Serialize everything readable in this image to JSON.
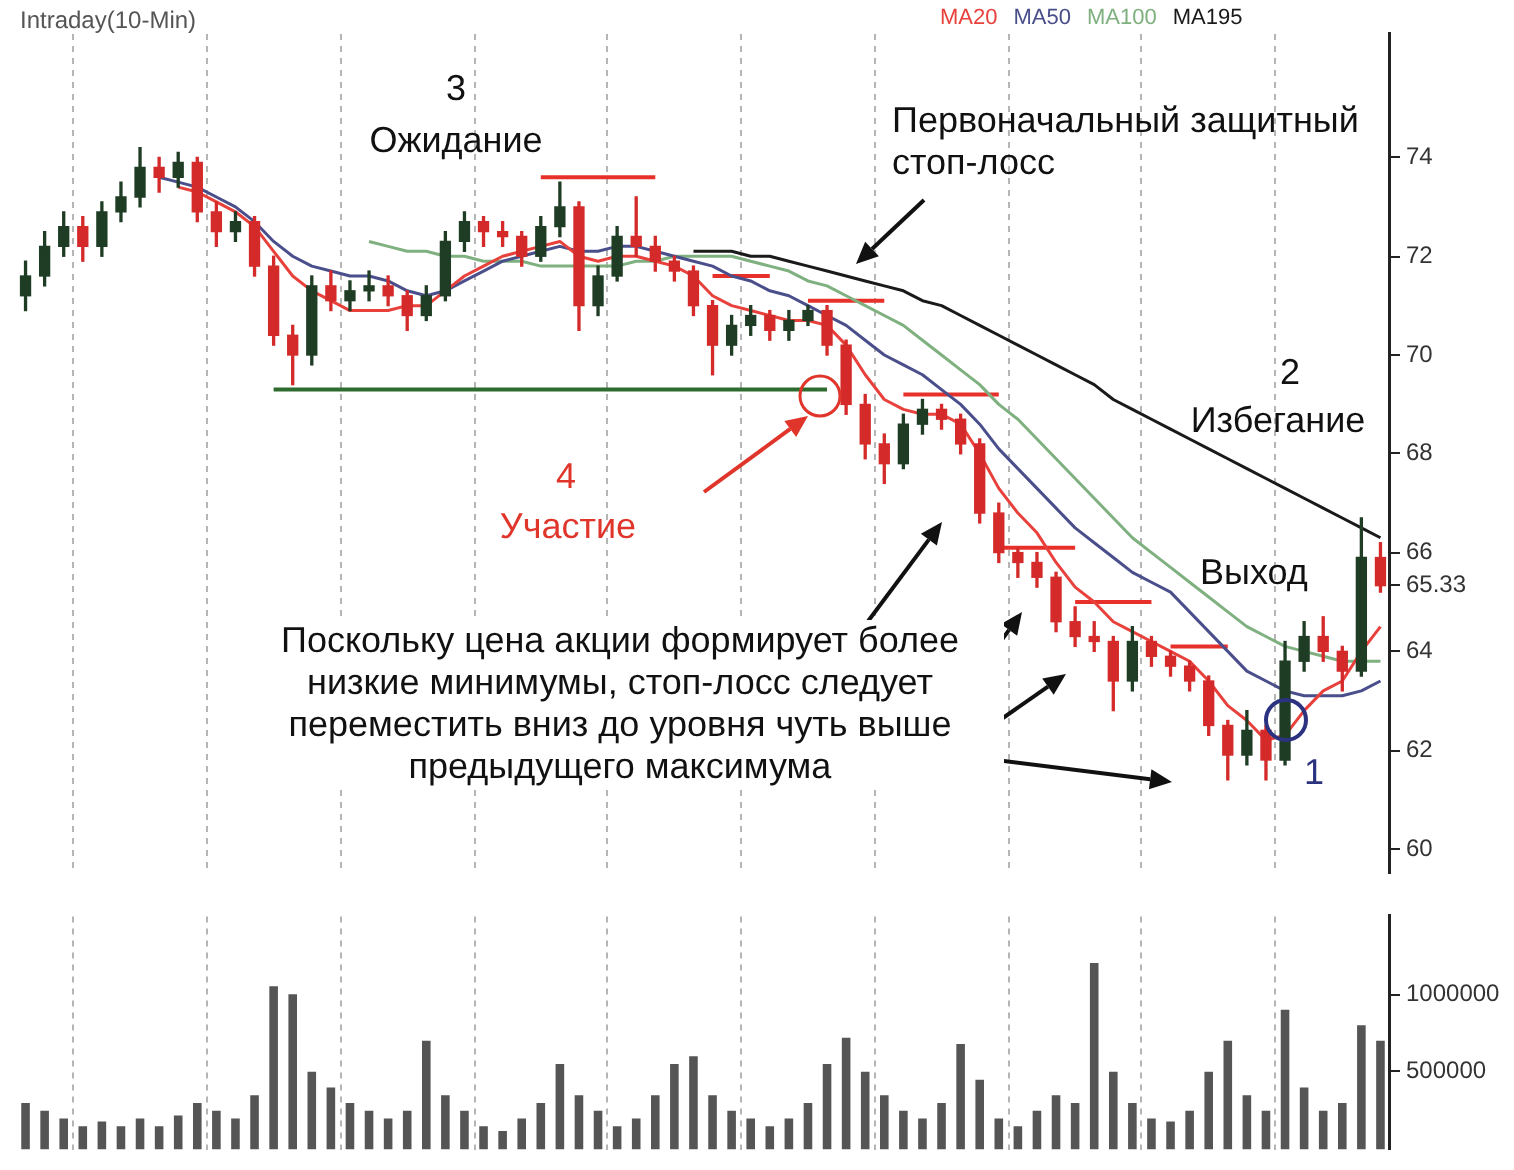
{
  "chart_data": [
    {
      "type": "candlestick",
      "title": "Intraday(10-Min)",
      "categories": [
        null,
        null,
        null,
        null,
        null,
        null,
        null,
        null,
        null,
        null,
        null,
        null,
        null,
        null,
        null,
        null,
        null,
        null,
        null,
        null,
        null,
        null,
        null,
        null,
        null,
        null,
        null,
        null,
        null,
        null,
        null,
        null,
        null,
        null,
        null,
        null,
        null,
        null,
        null,
        null,
        null,
        null,
        null,
        null,
        null,
        null,
        null,
        null,
        null,
        null,
        null,
        null,
        null,
        null,
        null,
        null,
        null,
        null,
        null,
        null,
        null,
        null,
        null,
        null,
        null,
        null,
        null,
        null,
        null,
        null,
        null,
        null
      ],
      "ohlc": [
        [
          71.2,
          71.9,
          70.9,
          71.6
        ],
        [
          71.6,
          72.5,
          71.4,
          72.2
        ],
        [
          72.2,
          72.9,
          72.0,
          72.6
        ],
        [
          72.6,
          72.8,
          71.9,
          72.2
        ],
        [
          72.2,
          73.1,
          72.0,
          72.9
        ],
        [
          72.9,
          73.5,
          72.7,
          73.2
        ],
        [
          73.2,
          74.2,
          73.0,
          73.8
        ],
        [
          73.8,
          74.0,
          73.3,
          73.6
        ],
        [
          73.6,
          74.1,
          73.4,
          73.9
        ],
        [
          73.9,
          74.0,
          72.7,
          72.9
        ],
        [
          72.9,
          73.1,
          72.2,
          72.5
        ],
        [
          72.5,
          72.9,
          72.3,
          72.7
        ],
        [
          72.7,
          72.8,
          71.6,
          71.8
        ],
        [
          71.8,
          72.0,
          70.2,
          70.4
        ],
        [
          70.4,
          70.6,
          69.4,
          70.0
        ],
        [
          70.0,
          71.6,
          69.8,
          71.4
        ],
        [
          71.4,
          71.7,
          70.9,
          71.1
        ],
        [
          71.1,
          71.5,
          70.9,
          71.3
        ],
        [
          71.3,
          71.7,
          71.1,
          71.4
        ],
        [
          71.4,
          71.6,
          71.0,
          71.2
        ],
        [
          71.2,
          71.3,
          70.5,
          70.8
        ],
        [
          70.8,
          71.4,
          70.7,
          71.2
        ],
        [
          71.2,
          72.5,
          71.1,
          72.3
        ],
        [
          72.3,
          72.9,
          72.1,
          72.7
        ],
        [
          72.7,
          72.8,
          72.2,
          72.5
        ],
        [
          72.5,
          72.7,
          72.2,
          72.4
        ],
        [
          72.4,
          72.5,
          71.8,
          72.0
        ],
        [
          72.0,
          72.8,
          71.9,
          72.6
        ],
        [
          72.6,
          73.5,
          72.4,
          73.0
        ],
        [
          73.0,
          73.1,
          70.5,
          71.0
        ],
        [
          71.0,
          71.8,
          70.8,
          71.6
        ],
        [
          71.6,
          72.6,
          71.5,
          72.4
        ],
        [
          72.4,
          73.2,
          72.0,
          72.2
        ],
        [
          72.2,
          72.4,
          71.7,
          71.9
        ],
        [
          71.9,
          72.0,
          71.5,
          71.7
        ],
        [
          71.7,
          71.8,
          70.8,
          71.0
        ],
        [
          71.0,
          71.1,
          69.6,
          70.2
        ],
        [
          70.2,
          70.8,
          70.0,
          70.6
        ],
        [
          70.6,
          71.0,
          70.4,
          70.8
        ],
        [
          70.8,
          70.9,
          70.3,
          70.5
        ],
        [
          70.5,
          70.9,
          70.3,
          70.7
        ],
        [
          70.7,
          71.0,
          70.6,
          70.9
        ],
        [
          70.9,
          71.0,
          70.0,
          70.2
        ],
        [
          70.2,
          70.3,
          68.8,
          69.0
        ],
        [
          69.0,
          69.2,
          67.9,
          68.2
        ],
        [
          68.2,
          68.4,
          67.4,
          67.8
        ],
        [
          67.8,
          68.8,
          67.7,
          68.6
        ],
        [
          68.6,
          69.1,
          68.4,
          68.9
        ],
        [
          68.9,
          69.0,
          68.5,
          68.7
        ],
        [
          68.7,
          68.8,
          68.0,
          68.2
        ],
        [
          68.2,
          68.3,
          66.6,
          66.8
        ],
        [
          66.8,
          67.0,
          65.8,
          66.0
        ],
        [
          66.0,
          66.1,
          65.5,
          65.8
        ],
        [
          65.8,
          66.0,
          65.3,
          65.5
        ],
        [
          65.5,
          65.6,
          64.4,
          64.6
        ],
        [
          64.6,
          64.9,
          64.1,
          64.3
        ],
        [
          64.3,
          64.6,
          64.0,
          64.2
        ],
        [
          64.2,
          64.3,
          62.8,
          63.4
        ],
        [
          63.4,
          64.5,
          63.2,
          64.2
        ],
        [
          64.2,
          64.3,
          63.7,
          63.9
        ],
        [
          63.9,
          64.0,
          63.5,
          63.7
        ],
        [
          63.7,
          63.8,
          63.2,
          63.4
        ],
        [
          63.4,
          63.5,
          62.3,
          62.5
        ],
        [
          62.5,
          62.6,
          61.4,
          61.9
        ],
        [
          61.9,
          62.8,
          61.7,
          62.4
        ],
        [
          62.4,
          62.5,
          61.4,
          61.8
        ],
        [
          61.8,
          64.2,
          61.7,
          63.8
        ],
        [
          63.8,
          64.6,
          63.6,
          64.3
        ],
        [
          64.3,
          64.7,
          63.8,
          64.0
        ],
        [
          64.0,
          64.1,
          63.2,
          63.6
        ],
        [
          63.6,
          66.7,
          63.5,
          65.9
        ],
        [
          65.9,
          66.2,
          65.2,
          65.33
        ]
      ],
      "series": [
        {
          "type": "line",
          "name": "MA20",
          "color": "#e8413c",
          "values": [
            null,
            null,
            null,
            null,
            null,
            null,
            null,
            null,
            73.4,
            73.3,
            73.1,
            72.9,
            72.6,
            72.1,
            71.6,
            71.3,
            71.1,
            70.9,
            70.9,
            70.9,
            71.0,
            71.0,
            71.3,
            71.6,
            71.8,
            72.0,
            72.1,
            72.2,
            72.3,
            72.0,
            71.9,
            72.0,
            72.0,
            71.9,
            71.8,
            71.6,
            71.2,
            71.0,
            70.9,
            70.8,
            70.7,
            70.7,
            70.6,
            70.2,
            69.6,
            69.1,
            68.9,
            68.8,
            68.8,
            68.6,
            68.0,
            67.3,
            66.8,
            66.4,
            65.8,
            65.3,
            65.0,
            64.6,
            64.4,
            64.2,
            64.0,
            63.8,
            63.4,
            62.9,
            62.6,
            62.2,
            62.3,
            62.8,
            63.2,
            63.4,
            64.0,
            64.5
          ]
        },
        {
          "type": "line",
          "name": "MA50",
          "color": "#4a4f8c",
          "values": [
            null,
            null,
            null,
            null,
            null,
            null,
            null,
            73.6,
            73.5,
            73.4,
            73.2,
            73.0,
            72.7,
            72.3,
            72.0,
            71.8,
            71.7,
            71.6,
            71.6,
            71.5,
            71.3,
            71.2,
            71.3,
            71.5,
            71.7,
            71.9,
            72.0,
            72.1,
            72.2,
            72.1,
            72.1,
            72.2,
            72.2,
            72.1,
            72.0,
            71.9,
            71.8,
            71.6,
            71.5,
            71.3,
            71.2,
            71.0,
            70.8,
            70.6,
            70.3,
            70.0,
            69.8,
            69.6,
            69.3,
            69.0,
            68.6,
            68.1,
            67.7,
            67.3,
            66.9,
            66.5,
            66.2,
            65.9,
            65.6,
            65.4,
            65.2,
            64.8,
            64.4,
            64.0,
            63.6,
            63.4,
            63.2,
            63.1,
            63.1,
            63.1,
            63.2,
            63.4
          ]
        },
        {
          "type": "line",
          "name": "MA100",
          "color": "#7fb07f",
          "values": [
            null,
            null,
            null,
            null,
            null,
            null,
            null,
            null,
            null,
            null,
            null,
            null,
            null,
            null,
            null,
            null,
            null,
            null,
            72.3,
            72.2,
            72.1,
            72.1,
            72.0,
            72.0,
            71.9,
            71.9,
            71.9,
            71.8,
            71.8,
            71.8,
            71.8,
            71.8,
            71.9,
            71.9,
            72.0,
            72.0,
            72.0,
            72.0,
            71.9,
            71.8,
            71.7,
            71.5,
            71.4,
            71.2,
            71.0,
            70.8,
            70.6,
            70.3,
            70.0,
            69.7,
            69.4,
            69.0,
            68.7,
            68.3,
            67.9,
            67.5,
            67.1,
            66.7,
            66.3,
            66.0,
            65.7,
            65.4,
            65.1,
            64.8,
            64.5,
            64.3,
            64.1,
            64.0,
            63.9,
            63.8,
            63.8,
            63.8
          ]
        },
        {
          "type": "line",
          "name": "MA195",
          "color": "#1a1a1a",
          "values": [
            null,
            null,
            null,
            null,
            null,
            null,
            null,
            null,
            null,
            null,
            null,
            null,
            null,
            null,
            null,
            null,
            null,
            null,
            null,
            null,
            null,
            null,
            null,
            null,
            null,
            null,
            null,
            null,
            null,
            null,
            null,
            null,
            null,
            null,
            null,
            72.1,
            72.1,
            72.1,
            72.0,
            72.0,
            71.9,
            71.8,
            71.7,
            71.6,
            71.5,
            71.4,
            71.3,
            71.1,
            71.0,
            70.8,
            70.6,
            70.4,
            70.2,
            70.0,
            69.8,
            69.6,
            69.4,
            69.1,
            68.9,
            68.7,
            68.5,
            68.3,
            68.1,
            67.9,
            67.7,
            67.5,
            67.3,
            67.1,
            66.9,
            66.7,
            66.5,
            66.3
          ]
        },
        {
          "type": "line",
          "color": "#2e6b2e",
          "values": [
            null,
            null,
            null,
            null,
            null,
            null,
            null,
            null,
            null,
            null,
            null,
            null,
            null,
            69.3,
            69.3,
            69.3,
            69.3,
            69.3,
            69.3,
            69.3,
            69.3,
            69.3,
            69.3,
            69.3,
            69.3,
            69.3,
            69.3,
            69.3,
            69.3,
            69.3,
            69.3,
            69.3,
            69.3,
            69.3,
            69.3,
            69.3,
            69.3,
            69.3,
            69.3,
            69.3,
            69.3,
            69.3,
            69.3,
            null,
            null,
            null,
            null,
            null,
            null,
            null,
            null,
            null,
            null,
            null,
            null,
            null,
            null,
            null,
            null,
            null,
            null,
            null,
            null,
            null,
            null,
            null,
            null,
            null,
            null,
            null,
            null,
            null
          ]
        },
        {
          "type": "line",
          "color": "#e8302a",
          "values": [
            null,
            null,
            null,
            null,
            null,
            null,
            null,
            null,
            null,
            null,
            null,
            null,
            null,
            null,
            null,
            null,
            null,
            null,
            null,
            null,
            null,
            null,
            null,
            null,
            null,
            null,
            null,
            73.6,
            73.6,
            73.6,
            73.6,
            73.6,
            73.6,
            73.6,
            null,
            null,
            null,
            null,
            null,
            null,
            null,
            null,
            null,
            null,
            null,
            null,
            null,
            null,
            null,
            null,
            null,
            null,
            null,
            null,
            null,
            null,
            null,
            null,
            null,
            null,
            null,
            null,
            null,
            null,
            null,
            null,
            null,
            null,
            null,
            null,
            null,
            null
          ]
        },
        {
          "type": "line",
          "color": "#e8302a",
          "values": [
            null,
            null,
            null,
            null,
            null,
            null,
            null,
            null,
            null,
            null,
            null,
            null,
            null,
            null,
            null,
            null,
            null,
            null,
            null,
            null,
            null,
            null,
            null,
            null,
            null,
            null,
            null,
            null,
            null,
            null,
            null,
            null,
            null,
            null,
            null,
            null,
            71.6,
            71.6,
            71.6,
            71.6,
            null,
            null,
            null,
            null,
            null,
            null,
            null,
            null,
            null,
            null,
            null,
            null,
            null,
            null,
            null,
            null,
            null,
            null,
            null,
            null,
            null,
            null,
            null,
            null,
            null,
            null,
            null,
            null,
            null,
            null,
            null,
            null
          ]
        },
        {
          "type": "line",
          "color": "#e8302a",
          "values": [
            null,
            null,
            null,
            null,
            null,
            null,
            null,
            null,
            null,
            null,
            null,
            null,
            null,
            null,
            null,
            null,
            null,
            null,
            null,
            null,
            null,
            null,
            null,
            null,
            null,
            null,
            null,
            null,
            null,
            null,
            null,
            null,
            null,
            null,
            null,
            null,
            null,
            null,
            null,
            null,
            null,
            71.1,
            71.1,
            71.1,
            71.1,
            71.1,
            null,
            null,
            null,
            null,
            null,
            null,
            null,
            null,
            null,
            null,
            null,
            null,
            null,
            null,
            null,
            null,
            null,
            null,
            null,
            null,
            null,
            null,
            null,
            null,
            null,
            null
          ]
        },
        {
          "type": "line",
          "color": "#e8302a",
          "values": [
            null,
            null,
            null,
            null,
            null,
            null,
            null,
            null,
            null,
            null,
            null,
            null,
            null,
            null,
            null,
            null,
            null,
            null,
            null,
            null,
            null,
            null,
            null,
            null,
            null,
            null,
            null,
            null,
            null,
            null,
            null,
            null,
            null,
            null,
            null,
            null,
            null,
            null,
            null,
            null,
            null,
            null,
            null,
            null,
            null,
            null,
            69.2,
            69.2,
            69.2,
            69.2,
            69.2,
            69.2,
            null,
            null,
            null,
            null,
            null,
            null,
            null,
            null,
            null,
            null,
            null,
            null,
            null,
            null,
            null,
            null,
            null,
            null,
            null,
            null
          ]
        },
        {
          "type": "line",
          "color": "#e8302a",
          "values": [
            null,
            null,
            null,
            null,
            null,
            null,
            null,
            null,
            null,
            null,
            null,
            null,
            null,
            null,
            null,
            null,
            null,
            null,
            null,
            null,
            null,
            null,
            null,
            null,
            null,
            null,
            null,
            null,
            null,
            null,
            null,
            null,
            null,
            null,
            null,
            null,
            null,
            null,
            null,
            null,
            null,
            null,
            null,
            null,
            null,
            null,
            null,
            null,
            null,
            null,
            null,
            66.1,
            66.1,
            66.1,
            66.1,
            66.1,
            null,
            null,
            null,
            null,
            null,
            null,
            null,
            null,
            null,
            null,
            null,
            null,
            null,
            null,
            null,
            null
          ]
        },
        {
          "type": "line",
          "color": "#e8302a",
          "values": [
            null,
            null,
            null,
            null,
            null,
            null,
            null,
            null,
            null,
            null,
            null,
            null,
            null,
            null,
            null,
            null,
            null,
            null,
            null,
            null,
            null,
            null,
            null,
            null,
            null,
            null,
            null,
            null,
            null,
            null,
            null,
            null,
            null,
            null,
            null,
            null,
            null,
            null,
            null,
            null,
            null,
            null,
            null,
            null,
            null,
            null,
            null,
            null,
            null,
            null,
            null,
            null,
            null,
            null,
            null,
            65.0,
            65.0,
            65.0,
            65.0,
            65.0,
            null,
            null,
            null,
            null,
            null,
            null,
            null,
            null,
            null,
            null,
            null,
            null
          ]
        },
        {
          "type": "line",
          "color": "#e8302a",
          "values": [
            null,
            null,
            null,
            null,
            null,
            null,
            null,
            null,
            null,
            null,
            null,
            null,
            null,
            null,
            null,
            null,
            null,
            null,
            null,
            null,
            null,
            null,
            null,
            null,
            null,
            null,
            null,
            null,
            null,
            null,
            null,
            null,
            null,
            null,
            null,
            null,
            null,
            null,
            null,
            null,
            null,
            null,
            null,
            null,
            null,
            null,
            null,
            null,
            null,
            null,
            null,
            null,
            null,
            null,
            null,
            null,
            null,
            null,
            null,
            null,
            64.1,
            64.1,
            64.1,
            64.1,
            null,
            null,
            null,
            null,
            null,
            null,
            null,
            null
          ]
        }
      ],
      "ylim": [
        59.5,
        76.5
      ],
      "yticks": [
        60,
        62,
        64,
        65.33,
        66,
        68,
        70,
        72,
        74
      ],
      "tick_labels": "y",
      "grid": "x",
      "legend": "top right",
      "marker": "none",
      "annotations": [
        "3",
        "Ожидание",
        "Первоначальный защитный стоп-лосс",
        "4",
        "Участие",
        "2",
        "Избегание",
        "Выход",
        "Поскольку цена акции формирует более низкие минимумы, стоп-лосс следует переместить вниз до уровня чуть выше предыдущего максимума",
        "1"
      ]
    },
    {
      "type": "bar",
      "categories": [
        null,
        null,
        null,
        null,
        null,
        null,
        null,
        null,
        null,
        null,
        null,
        null,
        null,
        null,
        null,
        null,
        null,
        null,
        null,
        null,
        null,
        null,
        null,
        null,
        null,
        null,
        null,
        null,
        null,
        null,
        null,
        null,
        null,
        null,
        null,
        null,
        null,
        null,
        null,
        null,
        null,
        null,
        null,
        null,
        null,
        null,
        null,
        null,
        null,
        null,
        null,
        null,
        null,
        null,
        null,
        null,
        null,
        null,
        null,
        null,
        null,
        null,
        null,
        null,
        null,
        null,
        null,
        null,
        null,
        null,
        null,
        null
      ],
      "values": [
        300000,
        250000,
        200000,
        150000,
        180000,
        150000,
        200000,
        150000,
        220000,
        300000,
        250000,
        200000,
        350000,
        1050000,
        1000000,
        500000,
        400000,
        300000,
        250000,
        200000,
        250000,
        700000,
        350000,
        250000,
        150000,
        120000,
        200000,
        300000,
        550000,
        350000,
        250000,
        150000,
        200000,
        350000,
        550000,
        600000,
        350000,
        250000,
        200000,
        150000,
        200000,
        300000,
        550000,
        720000,
        500000,
        350000,
        250000,
        200000,
        300000,
        680000,
        450000,
        200000,
        150000,
        250000,
        350000,
        300000,
        1200000,
        500000,
        300000,
        200000,
        180000,
        250000,
        500000,
        700000,
        350000,
        250000,
        900000,
        400000,
        250000,
        300000,
        800000,
        700000
      ],
      "color": "#555555",
      "ylim": [
        0,
        1500000
      ],
      "yticks": [
        500000,
        1000000
      ],
      "tick_labels": "y",
      "grid": "x"
    }
  ]
}
